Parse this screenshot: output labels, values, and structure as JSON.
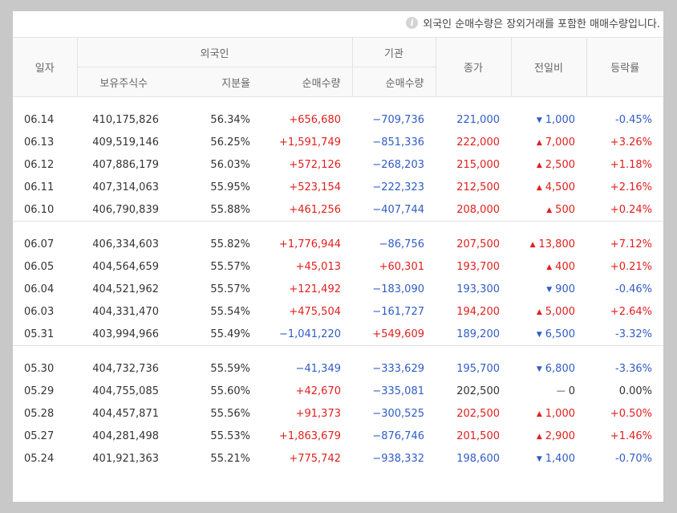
{
  "notice": "외국인 순매수량은 장외거래를 포함한 매매수량입니다.",
  "colors": {
    "up": "#e0201e",
    "down": "#2f5cc5",
    "flat": "#333333"
  },
  "headers": {
    "date": "일자",
    "foreign": "외국인",
    "institution": "기관",
    "close": "종가",
    "change": "전일비",
    "rate": "등락률",
    "holdings": "보유주식수",
    "share": "지분율",
    "foreign_net": "순매수량",
    "inst_net": "순매수량"
  },
  "groups": [
    {
      "rows": [
        {
          "date": "06.14",
          "holdings": "410,175,826",
          "share": "56.34%",
          "foreign_net": "+656,680",
          "inst_net": "−709,736",
          "close": "221,000",
          "change": "1,000",
          "dir": "down",
          "rate": "-0.45%"
        },
        {
          "date": "06.13",
          "holdings": "409,519,146",
          "share": "56.25%",
          "foreign_net": "+1,591,749",
          "inst_net": "−851,336",
          "close": "222,000",
          "change": "7,000",
          "dir": "up",
          "rate": "+3.26%"
        },
        {
          "date": "06.12",
          "holdings": "407,886,179",
          "share": "56.03%",
          "foreign_net": "+572,126",
          "inst_net": "−268,203",
          "close": "215,000",
          "change": "2,500",
          "dir": "up",
          "rate": "+1.18%"
        },
        {
          "date": "06.11",
          "holdings": "407,314,063",
          "share": "55.95%",
          "foreign_net": "+523,154",
          "inst_net": "−222,323",
          "close": "212,500",
          "change": "4,500",
          "dir": "up",
          "rate": "+2.16%"
        },
        {
          "date": "06.10",
          "holdings": "406,790,839",
          "share": "55.88%",
          "foreign_net": "+461,256",
          "inst_net": "−407,744",
          "close": "208,000",
          "change": "500",
          "dir": "up",
          "rate": "+0.24%"
        }
      ]
    },
    {
      "rows": [
        {
          "date": "06.07",
          "holdings": "406,334,603",
          "share": "55.82%",
          "foreign_net": "+1,776,944",
          "inst_net": "−86,756",
          "close": "207,500",
          "change": "13,800",
          "dir": "up",
          "rate": "+7.12%"
        },
        {
          "date": "06.05",
          "holdings": "404,564,659",
          "share": "55.57%",
          "foreign_net": "+45,013",
          "inst_net": "+60,301",
          "close": "193,700",
          "change": "400",
          "dir": "up",
          "rate": "+0.21%"
        },
        {
          "date": "06.04",
          "holdings": "404,521,962",
          "share": "55.57%",
          "foreign_net": "+121,492",
          "inst_net": "−183,090",
          "close": "193,300",
          "change": "900",
          "dir": "down",
          "rate": "-0.46%"
        },
        {
          "date": "06.03",
          "holdings": "404,331,470",
          "share": "55.54%",
          "foreign_net": "+475,504",
          "inst_net": "−161,727",
          "close": "194,200",
          "change": "5,000",
          "dir": "up",
          "rate": "+2.64%"
        },
        {
          "date": "05.31",
          "holdings": "403,994,966",
          "share": "55.49%",
          "foreign_net": "−1,041,220",
          "inst_net": "+549,609",
          "close": "189,200",
          "change": "6,500",
          "dir": "down",
          "rate": "-3.32%"
        }
      ]
    },
    {
      "rows": [
        {
          "date": "05.30",
          "holdings": "404,732,736",
          "share": "55.59%",
          "foreign_net": "−41,349",
          "inst_net": "−333,629",
          "close": "195,700",
          "change": "6,800",
          "dir": "down",
          "rate": "-3.36%"
        },
        {
          "date": "05.29",
          "holdings": "404,755,085",
          "share": "55.60%",
          "foreign_net": "+42,670",
          "inst_net": "−335,081",
          "close": "202,500",
          "change": "0",
          "dir": "flat",
          "rate": "0.00%"
        },
        {
          "date": "05.28",
          "holdings": "404,457,871",
          "share": "55.56%",
          "foreign_net": "+91,373",
          "inst_net": "−300,525",
          "close": "202,500",
          "change": "1,000",
          "dir": "up",
          "rate": "+0.50%"
        },
        {
          "date": "05.27",
          "holdings": "404,281,498",
          "share": "55.53%",
          "foreign_net": "+1,863,679",
          "inst_net": "−876,746",
          "close": "201,500",
          "change": "2,900",
          "dir": "up",
          "rate": "+1.46%"
        },
        {
          "date": "05.24",
          "holdings": "401,921,363",
          "share": "55.21%",
          "foreign_net": "+775,742",
          "inst_net": "−938,332",
          "close": "198,600",
          "change": "1,400",
          "dir": "down",
          "rate": "-0.70%"
        }
      ]
    }
  ]
}
